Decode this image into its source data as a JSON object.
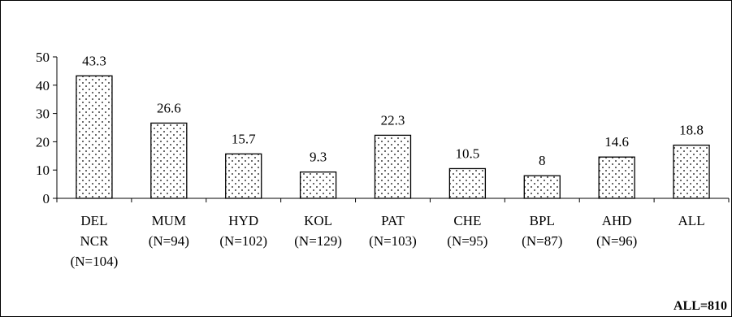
{
  "chart_data": {
    "type": "bar",
    "categories": [
      [
        "DEL",
        "NCR",
        "(N=104)"
      ],
      [
        "MUM",
        "(N=94)"
      ],
      [
        "HYD",
        "(N=102)"
      ],
      [
        "KOL",
        "(N=129)"
      ],
      [
        "PAT",
        "(N=103)"
      ],
      [
        "CHE",
        "(N=95)"
      ],
      [
        "BPL",
        "(N=87)"
      ],
      [
        "AHD",
        "(N=96)"
      ],
      [
        "ALL"
      ]
    ],
    "values": [
      43.3,
      26.6,
      15.7,
      9.3,
      22.3,
      10.5,
      8,
      14.6,
      18.8
    ],
    "data_labels": [
      "43.3",
      "26.6",
      "15.7",
      "9.3",
      "22.3",
      "10.5",
      "8",
      "14.6",
      "18.8"
    ],
    "ylim": [
      0,
      50
    ],
    "yticks": [
      0,
      10,
      20,
      30,
      40,
      50
    ],
    "grid": false,
    "bar_fill": "dotted",
    "bar_color": "#ffffff",
    "dot_color": "#000000"
  },
  "footnote": "ALL=810"
}
